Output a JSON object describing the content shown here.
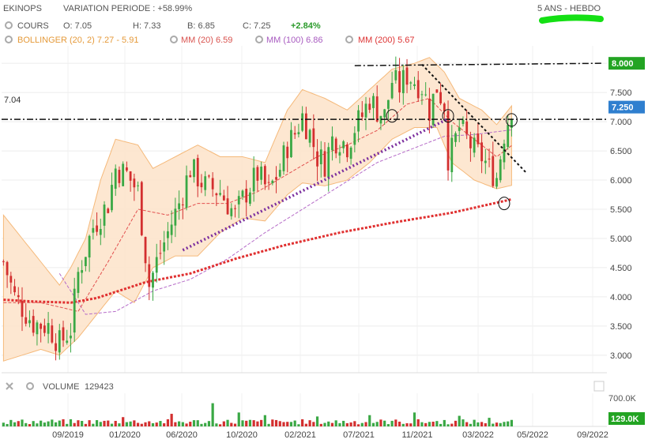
{
  "header": {
    "ticker": "EKINOPS",
    "variation": "VARIATION PERIODE : +58.99%",
    "period": "5 ANS - HEBDO"
  },
  "quote": {
    "label": "COURS",
    "open": "O: 7.05",
    "high": "H: 7.33",
    "low": "B: 6.85",
    "close": "C: 7.25",
    "change": "+2.84%"
  },
  "indicators": {
    "bollinger": "BOLLINGER (20, 2) 7.27 - 5.91",
    "mm20": "MM (20) 6.59",
    "mm100": "MM (100) 6.86",
    "mm200": "MM (200) 5.67"
  },
  "volume": {
    "label": "VOLUME",
    "value": "129423",
    "axis_label": "700.0K",
    "badge": "129.0K"
  },
  "colors": {
    "up": "#3aa845",
    "down": "#d32f2f",
    "bollinger_fill": "#fde4cc",
    "bollinger_line": "#f5b97a",
    "mm20": "#e2504f",
    "mm100": "#b66cc8",
    "mm200": "#e03030",
    "support": "#7b2e9e",
    "price_badge": "#2f7fcf",
    "resistance_badge": "#23a423",
    "volume_badge": "#23a423",
    "highlight": "#14e014"
  },
  "chart_data": {
    "type": "candlestick",
    "price_axis": {
      "ylim": [
        2.7,
        8.3
      ],
      "ticks": [
        "3.000",
        "3.500",
        "4.000",
        "4.500",
        "5.000",
        "5.500",
        "6.000",
        "6.500",
        "7.000",
        "7.500",
        "8.000"
      ]
    },
    "x_ticks": [
      "09/2019",
      "01/2020",
      "06/2020",
      "10/2020",
      "02/2021",
      "07/2021",
      "11/2021",
      "03/2022",
      "05/2022",
      "09/2022"
    ],
    "current_price": "7.250",
    "resistance": "8.000",
    "level_label": "7.04",
    "close_path": [
      [
        0,
        4.6
      ],
      [
        3,
        4.0
      ],
      [
        8,
        3.55
      ],
      [
        12,
        3.5
      ],
      [
        15,
        3.2
      ],
      [
        18,
        3.45
      ],
      [
        20,
        4.4
      ],
      [
        24,
        5.2
      ],
      [
        28,
        5.6
      ],
      [
        30,
        6.2
      ],
      [
        33,
        6.1
      ],
      [
        36,
        5.8
      ],
      [
        39,
        4.2
      ],
      [
        41,
        4.6
      ],
      [
        44,
        5.1
      ],
      [
        47,
        5.6
      ],
      [
        50,
        6.2
      ],
      [
        54,
        5.9
      ],
      [
        58,
        5.8
      ],
      [
        62,
        5.4
      ],
      [
        65,
        5.8
      ],
      [
        68,
        6.1
      ],
      [
        71,
        5.8
      ],
      [
        74,
        6.2
      ],
      [
        76,
        6.6
      ],
      [
        78,
        6.8
      ],
      [
        80,
        7.1
      ],
      [
        82,
        6.8
      ],
      [
        84,
        6.4
      ],
      [
        86,
        6.3
      ],
      [
        88,
        6.7
      ],
      [
        90,
        6.7
      ],
      [
        92,
        6.6
      ],
      [
        94,
        6.9
      ],
      [
        96,
        7.1
      ],
      [
        98,
        7.4
      ],
      [
        100,
        7.2
      ],
      [
        102,
        7.1
      ],
      [
        104,
        7.7
      ],
      [
        106,
        7.6
      ],
      [
        108,
        7.8
      ],
      [
        110,
        7.7
      ],
      [
        112,
        7.6
      ],
      [
        114,
        7.2
      ],
      [
        116,
        7.6
      ],
      [
        118,
        7.3
      ],
      [
        119,
        6.4
      ],
      [
        120,
        6.5
      ],
      [
        122,
        6.9
      ],
      [
        124,
        6.7
      ],
      [
        126,
        6.5
      ],
      [
        128,
        6.4
      ],
      [
        130,
        6.2
      ],
      [
        132,
        6.05
      ],
      [
        134,
        6.8
      ],
      [
        136,
        7.25
      ]
    ],
    "mm20_path": [
      [
        0,
        3.9
      ],
      [
        10,
        3.9
      ],
      [
        20,
        3.75
      ],
      [
        28,
        4.6
      ],
      [
        36,
        5.5
      ],
      [
        44,
        5.4
      ],
      [
        52,
        5.6
      ],
      [
        60,
        5.6
      ],
      [
        68,
        5.8
      ],
      [
        76,
        6.1
      ],
      [
        84,
        6.4
      ],
      [
        92,
        6.6
      ],
      [
        100,
        6.85
      ],
      [
        108,
        7.3
      ],
      [
        114,
        7.4
      ],
      [
        120,
        7.0
      ],
      [
        126,
        6.7
      ],
      [
        132,
        6.4
      ],
      [
        136,
        6.59
      ]
    ],
    "mm100_path": [
      [
        15,
        4.4
      ],
      [
        22,
        3.7
      ],
      [
        30,
        3.75
      ],
      [
        40,
        4.1
      ],
      [
        50,
        4.3
      ],
      [
        60,
        4.65
      ],
      [
        70,
        5.1
      ],
      [
        80,
        5.5
      ],
      [
        90,
        5.9
      ],
      [
        100,
        6.3
      ],
      [
        110,
        6.55
      ],
      [
        118,
        6.75
      ],
      [
        126,
        6.78
      ],
      [
        136,
        6.86
      ]
    ],
    "mm200_path": [
      [
        0,
        3.95
      ],
      [
        8,
        3.92
      ],
      [
        18,
        3.9
      ],
      [
        25,
        3.98
      ],
      [
        38,
        4.25
      ],
      [
        50,
        4.4
      ],
      [
        62,
        4.65
      ],
      [
        75,
        4.88
      ],
      [
        90,
        5.1
      ],
      [
        105,
        5.28
      ],
      [
        120,
        5.44
      ],
      [
        136,
        5.67
      ]
    ],
    "boll_upper_path": [
      [
        0,
        5.4
      ],
      [
        5,
        5.0
      ],
      [
        10,
        4.6
      ],
      [
        15,
        4.2
      ],
      [
        18,
        4.5
      ],
      [
        22,
        5.0
      ],
      [
        26,
        6.0
      ],
      [
        30,
        6.7
      ],
      [
        36,
        6.6
      ],
      [
        40,
        6.2
      ],
      [
        46,
        6.4
      ],
      [
        52,
        6.6
      ],
      [
        58,
        6.4
      ],
      [
        64,
        6.4
      ],
      [
        70,
        6.3
      ],
      [
        76,
        7.2
      ],
      [
        80,
        7.55
      ],
      [
        86,
        7.4
      ],
      [
        92,
        7.2
      ],
      [
        98,
        7.55
      ],
      [
        104,
        7.9
      ],
      [
        110,
        8.0
      ],
      [
        114,
        8.1
      ],
      [
        118,
        7.85
      ],
      [
        122,
        7.4
      ],
      [
        128,
        7.2
      ],
      [
        132,
        6.95
      ],
      [
        136,
        7.27
      ]
    ],
    "boll_lower_path": [
      [
        0,
        2.9
      ],
      [
        5,
        3.0
      ],
      [
        10,
        3.1
      ],
      [
        15,
        3.0
      ],
      [
        20,
        3.3
      ],
      [
        25,
        3.7
      ],
      [
        30,
        4.1
      ],
      [
        35,
        3.9
      ],
      [
        40,
        4.5
      ],
      [
        46,
        4.7
      ],
      [
        52,
        4.7
      ],
      [
        58,
        5.1
      ],
      [
        64,
        5.35
      ],
      [
        70,
        5.3
      ],
      [
        76,
        5.75
      ],
      [
        80,
        5.95
      ],
      [
        86,
        5.9
      ],
      [
        92,
        6.0
      ],
      [
        98,
        6.3
      ],
      [
        104,
        6.7
      ],
      [
        110,
        6.9
      ],
      [
        116,
        6.9
      ],
      [
        120,
        6.3
      ],
      [
        126,
        6.0
      ],
      [
        132,
        5.85
      ],
      [
        136,
        5.91
      ]
    ],
    "support_line": [
      [
        48,
        4.8
      ],
      [
        119,
        7.05
      ]
    ],
    "downtrend_line": [
      [
        112,
        7.98
      ],
      [
        140,
        6.12
      ]
    ],
    "resistance_line": [
      [
        94,
        7.96
      ],
      [
        160,
        8.0
      ]
    ],
    "volume_axis": {
      "ylim": [
        0,
        1000
      ]
    },
    "volume_spikes": [
      [
        32,
        280
      ],
      [
        45,
        380
      ],
      [
        56,
        700
      ],
      [
        63,
        420
      ],
      [
        70,
        340
      ],
      [
        84,
        300
      ],
      [
        98,
        340
      ],
      [
        110,
        420
      ],
      [
        122,
        320
      ],
      [
        130,
        260
      ]
    ]
  }
}
